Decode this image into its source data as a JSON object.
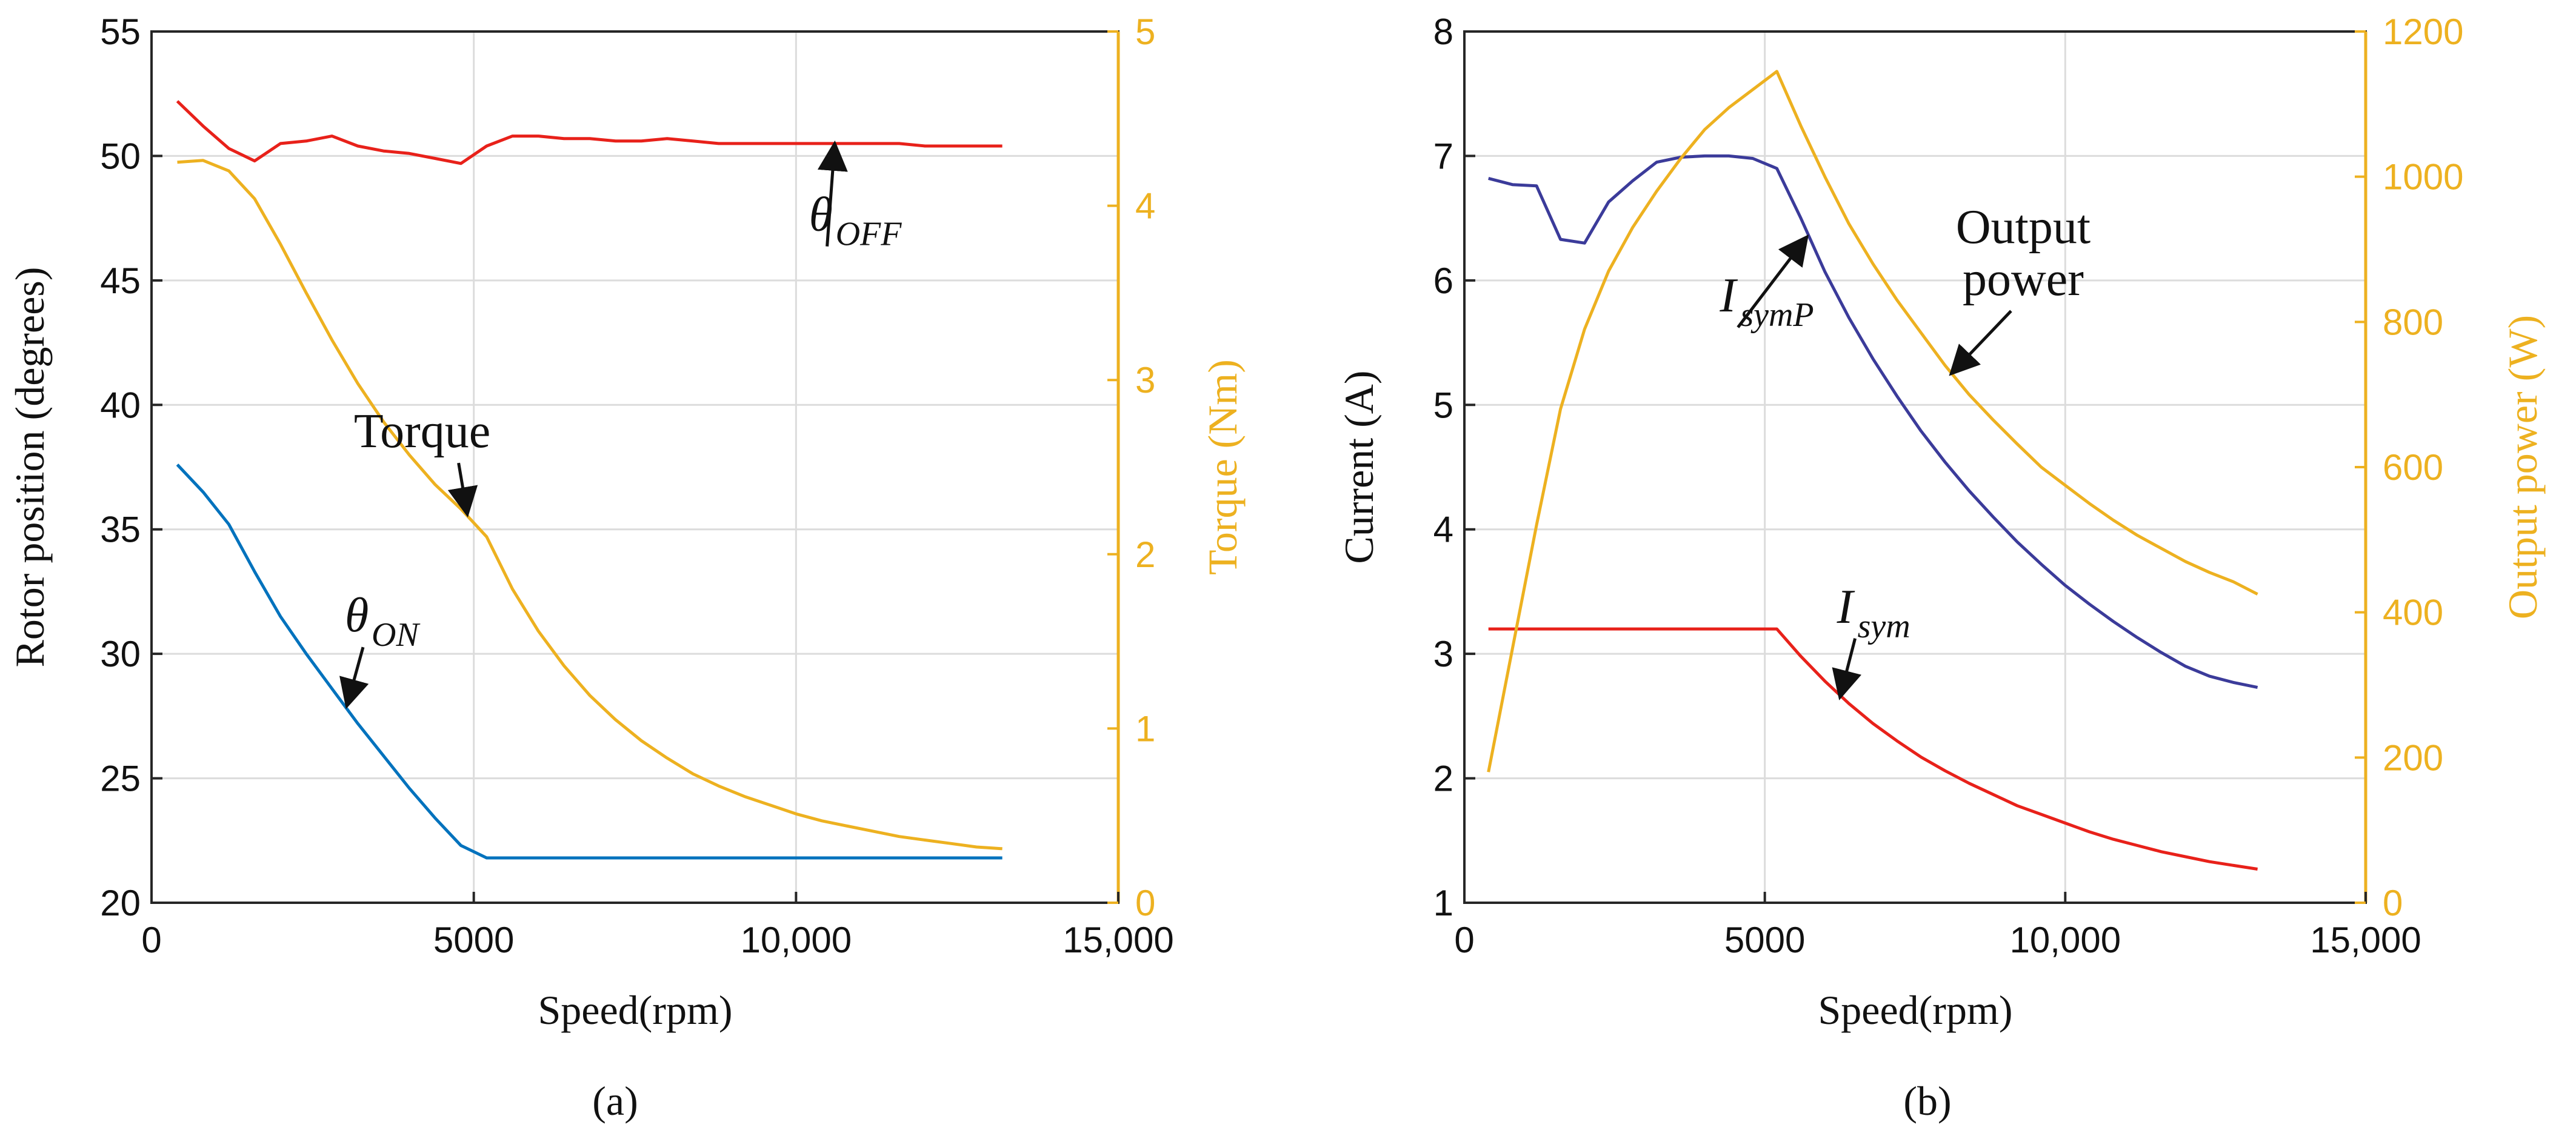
{
  "chart_data": [
    {
      "type": "line",
      "panel_label": "(a)",
      "xlabel": "Speed(rpm)",
      "xlim": [
        0,
        15000
      ],
      "xticks": [
        0,
        5000,
        10000,
        15000
      ],
      "xtick_labels": [
        "0",
        "5000",
        "10,000",
        "15,000"
      ],
      "ylabel_left": "Rotor position (degrees)",
      "ylim_left": [
        20,
        55
      ],
      "yticks_left": [
        20,
        25,
        30,
        35,
        40,
        45,
        50,
        55
      ],
      "ylabel_right": "Torque (Nm)",
      "ylim_right": [
        0,
        5
      ],
      "yticks_right": [
        0,
        1,
        2,
        3,
        4,
        5
      ],
      "grid": true,
      "series": [
        {
          "name": "θOFF",
          "axis": "left",
          "color": "#E8211A",
          "x": [
            400,
            800,
            1200,
            1600,
            2000,
            2400,
            2800,
            3200,
            3600,
            4000,
            4400,
            4800,
            5200,
            5600,
            6000,
            6400,
            6800,
            7200,
            7600,
            8000,
            8400,
            8800,
            9200,
            9600,
            10000,
            10400,
            10800,
            11200,
            11600,
            12000,
            12400,
            12800,
            13200
          ],
          "values": [
            52.2,
            51.2,
            50.3,
            49.8,
            50.5,
            50.6,
            50.8,
            50.4,
            50.2,
            50.1,
            49.9,
            49.7,
            50.4,
            50.8,
            50.8,
            50.7,
            50.7,
            50.6,
            50.6,
            50.7,
            50.6,
            50.5,
            50.5,
            50.5,
            50.5,
            50.5,
            50.5,
            50.5,
            50.5,
            50.4,
            50.4,
            50.4,
            50.4
          ]
        },
        {
          "name": "θON",
          "axis": "left",
          "color": "#0072BD",
          "x": [
            400,
            800,
            1200,
            1600,
            2000,
            2400,
            2800,
            3200,
            3600,
            4000,
            4400,
            4800,
            5200,
            5600,
            6000,
            7000,
            8000,
            9000,
            10000,
            11000,
            12000,
            13200
          ],
          "values": [
            37.6,
            36.5,
            35.2,
            33.3,
            31.5,
            30.0,
            28.6,
            27.2,
            25.9,
            24.6,
            23.4,
            22.3,
            21.8,
            21.8,
            21.8,
            21.8,
            21.8,
            21.8,
            21.8,
            21.8,
            21.8,
            21.8
          ]
        },
        {
          "name": "Torque",
          "axis": "right",
          "color": "#EDB120",
          "x": [
            400,
            800,
            1200,
            1600,
            2000,
            2400,
            2800,
            3200,
            3600,
            4000,
            4400,
            4800,
            5200,
            5600,
            6000,
            6400,
            6800,
            7200,
            7600,
            8000,
            8400,
            8800,
            9200,
            9600,
            10000,
            10400,
            10800,
            11200,
            11600,
            12000,
            12400,
            12800,
            13200
          ],
          "values": [
            4.25,
            4.26,
            4.2,
            4.04,
            3.78,
            3.5,
            3.23,
            2.98,
            2.76,
            2.57,
            2.4,
            2.26,
            2.1,
            1.8,
            1.56,
            1.36,
            1.19,
            1.05,
            0.93,
            0.83,
            0.74,
            0.67,
            0.61,
            0.56,
            0.51,
            0.47,
            0.44,
            0.41,
            0.38,
            0.36,
            0.34,
            0.32,
            0.31
          ]
        }
      ],
      "annotations": [
        {
          "id": "theta-off",
          "symbol": "θ",
          "subscript": "OFF",
          "x": 10200,
          "y": 47.0,
          "arrow_to": {
            "x": 10600,
            "y": 50.5
          }
        },
        {
          "id": "torque",
          "text": "Torque",
          "x": 4200,
          "y": 38.3,
          "arrow_to": {
            "x": 4900,
            "y": 35.6
          }
        },
        {
          "id": "theta-on",
          "symbol": "θ",
          "subscript": "ON",
          "x": 3000,
          "y": 30.9,
          "arrow_to": {
            "x": 3030,
            "y": 27.9
          }
        }
      ]
    },
    {
      "type": "line",
      "panel_label": "(b)",
      "xlabel": "Speed(rpm)",
      "xlim": [
        0,
        15000
      ],
      "xticks": [
        0,
        5000,
        10000,
        15000
      ],
      "xtick_labels": [
        "0",
        "5000",
        "10,000",
        "15,000"
      ],
      "ylabel_left": "Current (A)",
      "ylim_left": [
        1,
        8
      ],
      "yticks_left": [
        1,
        2,
        3,
        4,
        5,
        6,
        7,
        8
      ],
      "ylabel_right": "Output power (W)",
      "ylim_right": [
        0,
        1200
      ],
      "yticks_right": [
        0,
        200,
        400,
        600,
        800,
        1000,
        1200
      ],
      "grid": true,
      "series": [
        {
          "name": "IsymP",
          "axis": "left",
          "color": "#3B3B9A",
          "x": [
            400,
            800,
            1200,
            1600,
            2000,
            2400,
            2800,
            3200,
            3600,
            4000,
            4400,
            4800,
            5200,
            5600,
            6000,
            6400,
            6800,
            7200,
            7600,
            8000,
            8400,
            8800,
            9200,
            9600,
            10000,
            10400,
            10800,
            11200,
            11600,
            12000,
            12400,
            12800,
            13200
          ],
          "values": [
            6.82,
            6.77,
            6.76,
            6.33,
            6.3,
            6.63,
            6.8,
            6.95,
            6.99,
            7.0,
            7.0,
            6.98,
            6.9,
            6.5,
            6.07,
            5.7,
            5.37,
            5.07,
            4.79,
            4.54,
            4.31,
            4.1,
            3.9,
            3.72,
            3.55,
            3.4,
            3.26,
            3.13,
            3.01,
            2.9,
            2.82,
            2.77,
            2.73
          ]
        },
        {
          "name": "Isym",
          "axis": "left",
          "color": "#E8211A",
          "x": [
            400,
            800,
            1200,
            1600,
            2000,
            2400,
            2800,
            3200,
            3600,
            4000,
            4400,
            4800,
            5200,
            5600,
            6000,
            6400,
            6800,
            7200,
            7600,
            8000,
            8400,
            8800,
            9200,
            9600,
            10000,
            10400,
            10800,
            11200,
            11600,
            12000,
            12400,
            12800,
            13200
          ],
          "values": [
            3.2,
            3.2,
            3.2,
            3.2,
            3.2,
            3.2,
            3.2,
            3.2,
            3.2,
            3.2,
            3.2,
            3.2,
            3.2,
            2.98,
            2.78,
            2.6,
            2.44,
            2.3,
            2.17,
            2.06,
            1.96,
            1.87,
            1.78,
            1.71,
            1.64,
            1.57,
            1.51,
            1.46,
            1.41,
            1.37,
            1.33,
            1.3,
            1.27
          ]
        },
        {
          "name": "Output power",
          "axis": "right",
          "color": "#EDB120",
          "x": [
            400,
            800,
            1200,
            1600,
            2000,
            2400,
            2800,
            3200,
            3600,
            4000,
            4400,
            4800,
            5200,
            5600,
            6000,
            6400,
            6800,
            7200,
            7600,
            8000,
            8400,
            8800,
            9200,
            9600,
            10000,
            10400,
            10800,
            11200,
            11600,
            12000,
            12400,
            12800,
            13200
          ],
          "values": [
            180,
            350,
            520,
            680,
            790,
            870,
            930,
            980,
            1025,
            1065,
            1095,
            1120,
            1145,
            1070,
            1000,
            935,
            880,
            830,
            785,
            740,
            700,
            665,
            632,
            600,
            575,
            550,
            527,
            506,
            488,
            470,
            455,
            442,
            425
          ]
        }
      ],
      "annotations": [
        {
          "id": "isymp",
          "symbol": "I",
          "subscript": "symP",
          "x": 4250,
          "y": 5.75,
          "arrow_to": {
            "x": 5700,
            "y": 6.35
          }
        },
        {
          "id": "output-power",
          "text_lines": [
            "Output",
            "power"
          ],
          "x": 9300,
          "y": 6.3,
          "arrow_to": {
            "x": 8100,
            "y": 5.25
          }
        },
        {
          "id": "isym",
          "symbol": "I",
          "subscript": "sym",
          "x": 6200,
          "y": 3.25,
          "arrow_to": {
            "x": 6250,
            "y": 2.65
          }
        }
      ]
    }
  ]
}
